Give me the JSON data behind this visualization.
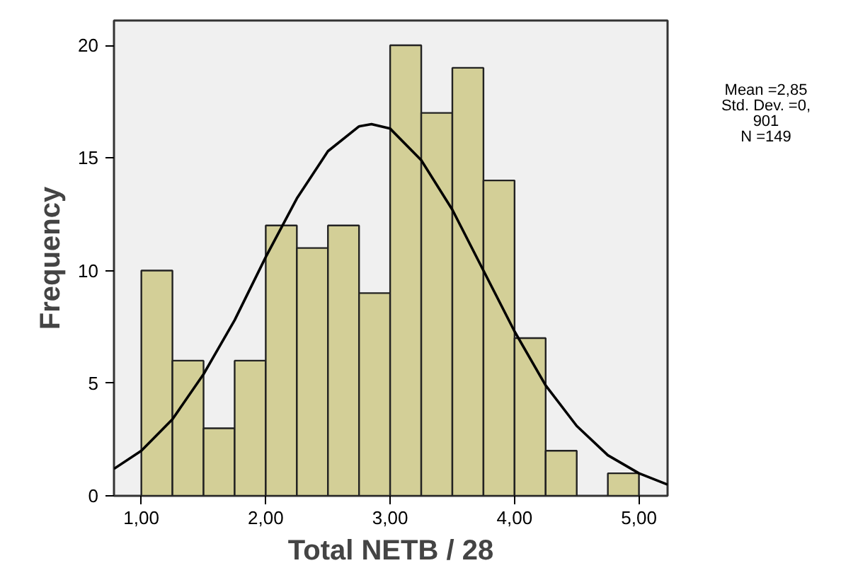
{
  "chart_data": {
    "type": "histogram",
    "xlabel": "Total NETB / 28",
    "ylabel": "Frequency",
    "bins": [
      1.0,
      1.25,
      1.5,
      1.75,
      2.0,
      2.25,
      2.5,
      2.75,
      3.0,
      3.25,
      3.5,
      3.75,
      4.0,
      4.25,
      4.5,
      4.75,
      5.0
    ],
    "values": [
      10,
      6,
      3,
      6,
      12,
      11,
      12,
      9,
      20,
      17,
      19,
      14,
      7,
      2,
      0,
      1
    ],
    "color": "#d3cf97",
    "series": [
      {
        "type": "line",
        "color": "#000000",
        "x": [
          0.78,
          1.0,
          1.25,
          1.5,
          1.75,
          2.0,
          2.25,
          2.5,
          2.75,
          2.85,
          3.0,
          3.25,
          3.5,
          3.75,
          4.0,
          4.25,
          4.5,
          4.75,
          5.0,
          5.23
        ],
        "values": [
          1.2,
          2.0,
          3.4,
          5.4,
          7.8,
          10.6,
          13.2,
          15.3,
          16.4,
          16.5,
          16.3,
          14.9,
          12.7,
          10.0,
          7.3,
          4.9,
          3.1,
          1.8,
          1.0,
          0.5
        ]
      }
    ],
    "xlim": [
      0.78,
      5.23
    ],
    "ylim": [
      0,
      21.1
    ],
    "xticks": [
      {
        "value": 1,
        "label": "1,00"
      },
      {
        "value": 2,
        "label": "2,00"
      },
      {
        "value": 3,
        "label": "3,00"
      },
      {
        "value": 4,
        "label": "4,00"
      },
      {
        "value": 5,
        "label": "5,00"
      }
    ],
    "yticks": [
      0,
      5,
      10,
      15,
      20
    ],
    "grid": false,
    "annotations": [
      "Mean =2,85\nStd. Dev. =0,\n901\nN =149"
    ]
  }
}
